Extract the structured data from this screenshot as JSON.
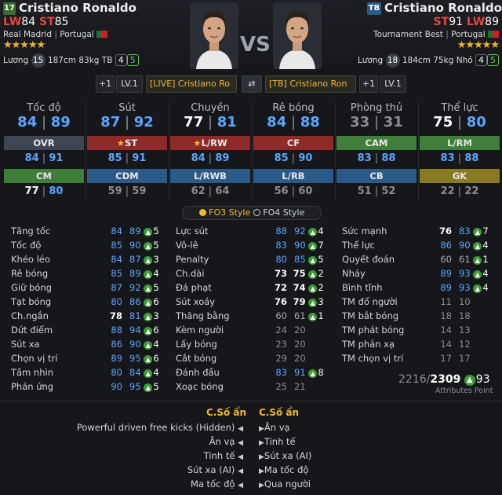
{
  "left": {
    "level": "17",
    "name": "Cristiano Ronaldo",
    "pos1": "LW",
    "pos1_val": "84",
    "pos2": "ST",
    "pos2_val": "85",
    "club": "Real Madrid",
    "country": "Portugal",
    "stars": "★★★★★",
    "salary_label": "Lương",
    "salary": "15",
    "height": "187cm",
    "weight": "83kg",
    "foot": "TB",
    "weak_left": "4",
    "weak_right": "5"
  },
  "right": {
    "badge": "TB",
    "name": "Cristiano Ronaldo",
    "pos1": "ST",
    "pos1_val": "91",
    "pos2": "LW",
    "pos2_val": "89",
    "club": "Tournament Best",
    "country": "Portugal",
    "stars": "★★★★★",
    "salary_label": "Lương",
    "salary": "18",
    "height": "184cm",
    "weight": "75kg",
    "foot": "Nhỏ",
    "weak_left": "4",
    "weak_right": "5"
  },
  "vs": "VS",
  "controls": {
    "left_plus": "+1",
    "left_lv": "LV.1",
    "left_select": "[LIVE] Cristiano Ro",
    "swap_icon": "swap-icon",
    "right_select": "[TB] Cristiano Ron",
    "right_plus": "+1",
    "right_lv": "LV.1"
  },
  "summary": [
    {
      "label": "Tốc độ",
      "a": "84",
      "b": "89",
      "a_color": "#5ba7ff",
      "b_color": "#5ba7ff"
    },
    {
      "label": "Sút",
      "a": "87",
      "b": "92",
      "a_color": "#5ba7ff",
      "b_color": "#5ba7ff"
    },
    {
      "label": "Chuyền",
      "a": "77",
      "b": "81",
      "a_color": "#ffffff",
      "b_color": "#5ba7ff"
    },
    {
      "label": "Rê bóng",
      "a": "84",
      "b": "88",
      "a_color": "#5ba7ff",
      "b_color": "#5ba7ff"
    },
    {
      "label": "Phòng thủ",
      "a": "33",
      "b": "31",
      "a_color": "#8a8d92",
      "b_color": "#8a8d92"
    },
    {
      "label": "Thể lực",
      "a": "75",
      "b": "80",
      "a_color": "#ffffff",
      "b_color": "#5ba7ff"
    }
  ],
  "positions_row1": [
    {
      "label": "OVR",
      "bg": "#3e4553",
      "a": "84",
      "b": "91",
      "star": false
    },
    {
      "label": "ST",
      "bg": "#8e2a28",
      "a": "85",
      "b": "91",
      "star": true
    },
    {
      "label": "L/RW",
      "bg": "#8e2a28",
      "a": "84",
      "b": "89",
      "star": true
    },
    {
      "label": "CF",
      "bg": "#8e2a28",
      "a": "85",
      "b": "90",
      "star": false
    },
    {
      "label": "CAM",
      "bg": "#3f7f3a",
      "a": "83",
      "b": "88",
      "star": false
    },
    {
      "label": "L/RM",
      "bg": "#3f7f3a",
      "a": "83",
      "b": "88",
      "star": false
    }
  ],
  "positions_row2": [
    {
      "label": "CM",
      "bg": "#3f7f3a",
      "a": "77",
      "b": "80"
    },
    {
      "label": "CDM",
      "bg": "#2b5a88",
      "a": "59",
      "b": "59"
    },
    {
      "label": "L/RWB",
      "bg": "#2b5a88",
      "a": "62",
      "b": "64"
    },
    {
      "label": "L/RB",
      "bg": "#2b5a88",
      "a": "56",
      "b": "60"
    },
    {
      "label": "CB",
      "bg": "#2b5a88",
      "a": "51",
      "b": "52"
    },
    {
      "label": "GK",
      "bg": "#8a7a24",
      "a": "22",
      "b": "22"
    }
  ],
  "style_toggle": {
    "fo3": "FO3 Style",
    "fo4": "FO4 Style"
  },
  "stats_col1": [
    {
      "l": "Tăng tốc",
      "a": "84",
      "b": "89",
      "d": "5",
      "ac": "#5ba7ff",
      "bc": "#5ba7ff"
    },
    {
      "l": "Tốc độ",
      "a": "85",
      "b": "90",
      "d": "5",
      "ac": "#5ba7ff",
      "bc": "#5ba7ff"
    },
    {
      "l": "Khéo léo",
      "a": "84",
      "b": "87",
      "d": "3",
      "ac": "#5ba7ff",
      "bc": "#5ba7ff"
    },
    {
      "l": "Rê bóng",
      "a": "85",
      "b": "89",
      "d": "4",
      "ac": "#5ba7ff",
      "bc": "#5ba7ff"
    },
    {
      "l": "Giữ bóng",
      "a": "87",
      "b": "92",
      "d": "5",
      "ac": "#5ba7ff",
      "bc": "#5ba7ff"
    },
    {
      "l": "Tạt bóng",
      "a": "80",
      "b": "86",
      "d": "6",
      "ac": "#5ba7ff",
      "bc": "#5ba7ff"
    },
    {
      "l": "Ch.ngắn",
      "a": "78",
      "b": "81",
      "d": "3",
      "ac": "#ffffff",
      "bc": "#5ba7ff"
    },
    {
      "l": "Dứt điểm",
      "a": "88",
      "b": "94",
      "d": "6",
      "ac": "#5ba7ff",
      "bc": "#5ba7ff"
    },
    {
      "l": "Sút xa",
      "a": "86",
      "b": "90",
      "d": "4",
      "ac": "#5ba7ff",
      "bc": "#5ba7ff"
    },
    {
      "l": "Chọn vị trí",
      "a": "89",
      "b": "95",
      "d": "6",
      "ac": "#5ba7ff",
      "bc": "#5ba7ff"
    },
    {
      "l": "Tầm nhìn",
      "a": "80",
      "b": "84",
      "d": "4",
      "ac": "#5ba7ff",
      "bc": "#5ba7ff"
    },
    {
      "l": "Phản ứng",
      "a": "90",
      "b": "95",
      "d": "5",
      "ac": "#5ba7ff",
      "bc": "#5ba7ff"
    }
  ],
  "stats_col2": [
    {
      "l": "Lực sút",
      "a": "88",
      "b": "92",
      "d": "4",
      "ac": "#5ba7ff",
      "bc": "#5ba7ff"
    },
    {
      "l": "Vô-lê",
      "a": "83",
      "b": "90",
      "d": "7",
      "ac": "#5ba7ff",
      "bc": "#5ba7ff"
    },
    {
      "l": "Penalty",
      "a": "80",
      "b": "85",
      "d": "5",
      "ac": "#5ba7ff",
      "bc": "#5ba7ff"
    },
    {
      "l": "Ch.dài",
      "a": "73",
      "b": "75",
      "d": "2",
      "ac": "#ffffff",
      "bc": "#ffffff"
    },
    {
      "l": "Đá phạt",
      "a": "72",
      "b": "74",
      "d": "2",
      "ac": "#ffffff",
      "bc": "#ffffff"
    },
    {
      "l": "Sút xoáy",
      "a": "76",
      "b": "79",
      "d": "3",
      "ac": "#ffffff",
      "bc": "#ffffff"
    },
    {
      "l": "Thăng bằng",
      "a": "60",
      "b": "61",
      "d": "1",
      "ac": "#aaaaaa",
      "bc": "#aaaaaa"
    },
    {
      "l": "Kèm người",
      "a": "24",
      "b": "20",
      "d": "",
      "ac": "#8a8d92",
      "bc": "#8a8d92"
    },
    {
      "l": "Lấy bóng",
      "a": "23",
      "b": "20",
      "d": "",
      "ac": "#8a8d92",
      "bc": "#8a8d92"
    },
    {
      "l": "Cắt bóng",
      "a": "29",
      "b": "20",
      "d": "",
      "ac": "#8a8d92",
      "bc": "#8a8d92"
    },
    {
      "l": "Đánh đầu",
      "a": "83",
      "b": "91",
      "d": "8",
      "ac": "#5ba7ff",
      "bc": "#5ba7ff"
    },
    {
      "l": "Xoạc bóng",
      "a": "25",
      "b": "21",
      "d": "",
      "ac": "#8a8d92",
      "bc": "#8a8d92"
    }
  ],
  "stats_col3": [
    {
      "l": "Sức mạnh",
      "a": "76",
      "b": "83",
      "d": "7",
      "ac": "#ffffff",
      "bc": "#5ba7ff"
    },
    {
      "l": "Thể lực",
      "a": "86",
      "b": "90",
      "d": "4",
      "ac": "#5ba7ff",
      "bc": "#5ba7ff"
    },
    {
      "l": "Quyết đoán",
      "a": "60",
      "b": "61",
      "d": "1",
      "ac": "#aaaaaa",
      "bc": "#aaaaaa"
    },
    {
      "l": "Nhảy",
      "a": "89",
      "b": "93",
      "d": "4",
      "ac": "#5ba7ff",
      "bc": "#5ba7ff"
    },
    {
      "l": "Bình tĩnh",
      "a": "89",
      "b": "93",
      "d": "4",
      "ac": "#5ba7ff",
      "bc": "#5ba7ff"
    },
    {
      "l": "TM đổ người",
      "a": "11",
      "b": "10",
      "d": "",
      "ac": "#8a8d92",
      "bc": "#8a8d92"
    },
    {
      "l": "TM bắt bóng",
      "a": "18",
      "b": "18",
      "d": "",
      "ac": "#8a8d92",
      "bc": "#8a8d92"
    },
    {
      "l": "TM phát bóng",
      "a": "14",
      "b": "13",
      "d": "",
      "ac": "#8a8d92",
      "bc": "#8a8d92"
    },
    {
      "l": "TM phản xạ",
      "a": "14",
      "b": "12",
      "d": "",
      "ac": "#8a8d92",
      "bc": "#8a8d92"
    },
    {
      "l": "TM chọn vị trí",
      "a": "17",
      "b": "17",
      "d": "",
      "ac": "#8a8d92",
      "bc": "#8a8d92"
    }
  ],
  "attr_points": {
    "a": "2216",
    "b": "2309",
    "d": "93",
    "label": "Attributes Point"
  },
  "hidden": {
    "title": "C.Số ẩn",
    "left": [
      "Powerful driven free kicks (Hidden)",
      "Ăn vạ",
      "Tinh tế",
      "Sút xa (AI)",
      "Ma tốc độ"
    ],
    "right": [
      "Ăn vạ",
      "Tinh tế",
      "Sút xa (AI)",
      "Ma tốc độ",
      "Qua người"
    ]
  }
}
